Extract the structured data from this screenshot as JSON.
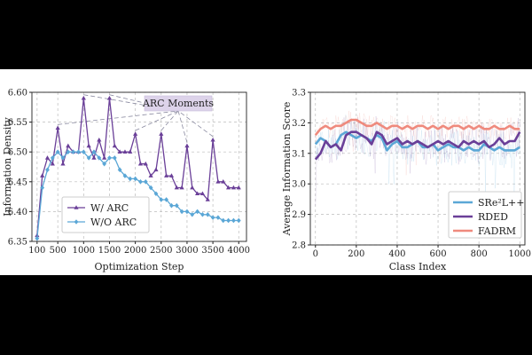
{
  "chart_data": [
    {
      "type": "line",
      "xlabel": "Optimization Step",
      "ylabel": "Information Density",
      "xticks": [
        100,
        500,
        1000,
        1500,
        2000,
        2500,
        3000,
        3500,
        4000
      ],
      "yticks": [
        6.35,
        6.4,
        6.45,
        6.5,
        6.55,
        6.6
      ],
      "xlim": [
        0,
        4150
      ],
      "ylim": [
        6.35,
        6.6
      ],
      "grid": true,
      "legend_position": "bottom-left",
      "annotation": "ARC Moments",
      "annotation_targets": [
        500,
        1000,
        1500,
        2000,
        2500,
        3000,
        3500
      ],
      "x": [
        100,
        200,
        300,
        400,
        500,
        600,
        700,
        800,
        900,
        1000,
        1100,
        1200,
        1300,
        1400,
        1500,
        1600,
        1700,
        1800,
        1900,
        2000,
        2100,
        2200,
        2300,
        2400,
        2500,
        2600,
        2700,
        2800,
        2900,
        3000,
        3100,
        3200,
        3300,
        3400,
        3500,
        3600,
        3700,
        3800,
        3900,
        4000
      ],
      "series": [
        {
          "name": "W/ ARC",
          "color": "#6a3f98",
          "marker": "triangle",
          "values": [
            6.36,
            6.46,
            6.49,
            6.48,
            6.54,
            6.48,
            6.51,
            6.5,
            6.5,
            6.59,
            6.51,
            6.49,
            6.52,
            6.49,
            6.59,
            6.51,
            6.5,
            6.5,
            6.5,
            6.53,
            6.48,
            6.48,
            6.46,
            6.47,
            6.53,
            6.46,
            6.46,
            6.44,
            6.44,
            6.51,
            6.44,
            6.43,
            6.43,
            6.42,
            6.52,
            6.45,
            6.45,
            6.44,
            6.44,
            6.44
          ]
        },
        {
          "name": "W/O ARC",
          "color": "#5ba7d6",
          "marker": "diamond",
          "values": [
            6.355,
            6.44,
            6.47,
            6.49,
            6.5,
            6.49,
            6.5,
            6.5,
            6.5,
            6.5,
            6.49,
            6.5,
            6.49,
            6.48,
            6.49,
            6.49,
            6.47,
            6.46,
            6.455,
            6.455,
            6.45,
            6.45,
            6.44,
            6.43,
            6.42,
            6.42,
            6.41,
            6.41,
            6.4,
            6.4,
            6.395,
            6.4,
            6.395,
            6.395,
            6.39,
            6.39,
            6.385,
            6.385,
            6.385,
            6.385
          ]
        }
      ]
    },
    {
      "type": "line",
      "xlabel": "Class Index",
      "ylabel": "Average Information Score",
      "xticks": [
        0,
        200,
        400,
        600,
        800,
        1000
      ],
      "yticks": [
        2.8,
        2.9,
        3.0,
        3.1,
        3.2,
        3.3
      ],
      "xlim": [
        -25,
        1025
      ],
      "ylim": [
        2.8,
        3.3
      ],
      "grid": true,
      "legend_position": "bottom-right",
      "x": [
        0,
        25,
        50,
        75,
        100,
        125,
        150,
        175,
        200,
        225,
        250,
        275,
        300,
        325,
        350,
        375,
        400,
        425,
        450,
        475,
        500,
        525,
        550,
        575,
        600,
        625,
        650,
        675,
        700,
        725,
        750,
        775,
        800,
        825,
        850,
        875,
        900,
        925,
        950,
        975,
        1000
      ],
      "series": [
        {
          "name": "SRe²L++",
          "color": "#5ba7d6",
          "values": [
            3.13,
            3.15,
            3.14,
            3.12,
            3.13,
            3.16,
            3.17,
            3.16,
            3.15,
            3.16,
            3.15,
            3.14,
            3.16,
            3.15,
            3.11,
            3.13,
            3.14,
            3.12,
            3.12,
            3.13,
            3.14,
            3.12,
            3.12,
            3.13,
            3.11,
            3.12,
            3.13,
            3.12,
            3.12,
            3.11,
            3.12,
            3.11,
            3.11,
            3.13,
            3.12,
            3.11,
            3.12,
            3.11,
            3.11,
            3.11,
            3.12
          ]
        },
        {
          "name": "RDED",
          "color": "#6a3f98",
          "values": [
            3.08,
            3.1,
            3.14,
            3.12,
            3.13,
            3.11,
            3.16,
            3.17,
            3.17,
            3.16,
            3.15,
            3.13,
            3.17,
            3.16,
            3.13,
            3.14,
            3.15,
            3.13,
            3.14,
            3.13,
            3.14,
            3.13,
            3.12,
            3.13,
            3.14,
            3.13,
            3.14,
            3.13,
            3.12,
            3.14,
            3.13,
            3.14,
            3.13,
            3.14,
            3.12,
            3.13,
            3.15,
            3.13,
            3.14,
            3.14,
            3.17
          ]
        },
        {
          "name": "FADRM",
          "color": "#ef8a7d",
          "values": [
            3.16,
            3.18,
            3.19,
            3.18,
            3.19,
            3.19,
            3.2,
            3.21,
            3.21,
            3.2,
            3.19,
            3.19,
            3.2,
            3.19,
            3.18,
            3.19,
            3.19,
            3.18,
            3.19,
            3.18,
            3.19,
            3.19,
            3.18,
            3.19,
            3.18,
            3.19,
            3.18,
            3.19,
            3.19,
            3.18,
            3.19,
            3.18,
            3.19,
            3.18,
            3.18,
            3.19,
            3.18,
            3.18,
            3.19,
            3.18,
            3.18
          ]
        }
      ]
    }
  ]
}
